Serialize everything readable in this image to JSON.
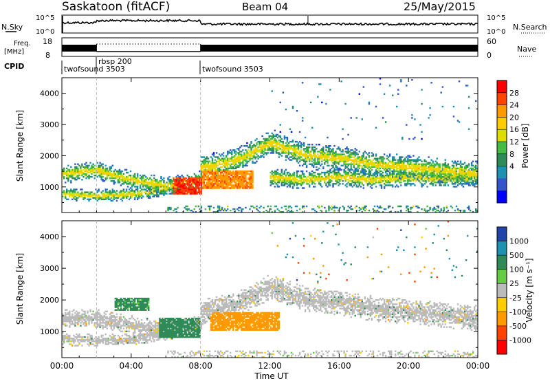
{
  "header": {
    "title": "Saskatoon (fitACF)",
    "beam": "Beam 04",
    "date": "25/May/2015"
  },
  "status_panels": {
    "nsky_label": "N.Sky",
    "nsearch_label": "N.Search",
    "noise_ticks": [
      "10^5",
      "10^0"
    ],
    "freq_label_line1": "Freq.",
    "freq_label_line2": "[MHz]",
    "freq_ticks": [
      "18",
      "8"
    ],
    "nave_label": "Nave",
    "nave_ticks": [
      "60",
      "0"
    ],
    "cpid_label": "CPID",
    "cpid_modes": [
      {
        "name": "twofsound 3503",
        "start_hr": 0,
        "end_hr": 2
      },
      {
        "name": "rbsp 200",
        "start_hr": 2,
        "end_hr": 8
      },
      {
        "name": "twofsound 3503",
        "start_hr": 8,
        "end_hr": 24
      }
    ]
  },
  "chart_data": [
    {
      "type": "heatmap",
      "panel": "power",
      "ylabel": "Slant Range [km]",
      "ylim": [
        180,
        4500
      ],
      "yticks": [
        1000,
        2000,
        3000,
        4000
      ],
      "xlim_hours": [
        0,
        24
      ],
      "colorbar_label": "Power [dB]",
      "colorbar_ticks": [
        "28",
        "24",
        "20",
        "16",
        "12",
        "8",
        "4"
      ],
      "colorbar_colors": [
        "#ff0000",
        "#ff4400",
        "#ff9900",
        "#ffcc00",
        "#dddd00",
        "#44bb44",
        "#2e8b57",
        "#1e90b0",
        "#3355cc",
        "#0000ff"
      ],
      "bands": [
        {
          "x": [
            0,
            2,
            4,
            6,
            8
          ],
          "y": [
            1400,
            1500,
            1200,
            1000,
            1200
          ],
          "width": 300
        },
        {
          "x": [
            0,
            2,
            4,
            6
          ],
          "y": [
            750,
            700,
            750,
            900
          ],
          "width": 200
        },
        {
          "x": [
            8,
            10,
            12,
            14,
            16,
            18,
            20,
            22,
            24
          ],
          "y": [
            1600,
            1800,
            2400,
            2000,
            1900,
            1700,
            1600,
            1500,
            1400
          ],
          "width": 400
        },
        {
          "x": [
            12,
            14,
            16,
            18,
            20,
            22,
            24
          ],
          "y": [
            1300,
            1200,
            1300,
            1200,
            1300,
            1250,
            1300
          ],
          "width": 300
        }
      ],
      "hotspots": [
        {
          "x": 7.2,
          "y": 1000,
          "dx": 0.8,
          "dy": 280,
          "value": 30
        },
        {
          "x": 9.5,
          "y": 1200,
          "dx": 1.5,
          "dy": 300,
          "value": 26
        }
      ]
    },
    {
      "type": "heatmap",
      "panel": "velocity",
      "ylabel": "Slant Range [km]",
      "ylim": [
        180,
        4500
      ],
      "yticks": [
        1000,
        2000,
        3000,
        4000
      ],
      "xlim_hours": [
        0,
        24
      ],
      "xticks": [
        "00:00",
        "04:00",
        "08:00",
        "12:00",
        "16:00",
        "20:00",
        "00:00"
      ],
      "xlabel": "Time UT",
      "colorbar_label": "Velocity [m s⁻¹]",
      "colorbar_ticks": [
        "1000",
        "500",
        "100",
        "25",
        "-25",
        "-100",
        "-500",
        "-1000"
      ],
      "colorbar_colors": [
        "#2244aa",
        "#1e90b0",
        "#2e8b57",
        "#66cc44",
        "#bbbbbb",
        "#ffcc00",
        "#ff9900",
        "#ff4400",
        "#ff0000"
      ],
      "bands": [
        {
          "x": [
            0,
            2,
            4,
            6,
            8
          ],
          "y": [
            1400,
            1400,
            1200,
            1000,
            1200
          ],
          "width": 300
        },
        {
          "x": [
            0,
            2,
            4,
            6
          ],
          "y": [
            750,
            700,
            750,
            900
          ],
          "width": 200
        },
        {
          "x": [
            8,
            10,
            12,
            14,
            16,
            18,
            20,
            22,
            24
          ],
          "y": [
            1600,
            1800,
            2400,
            2000,
            1900,
            1700,
            1600,
            1500,
            1400
          ],
          "width": 400
        }
      ],
      "hotspots": [
        {
          "x": 10.5,
          "y": 1300,
          "dx": 2.0,
          "dy": 280,
          "value": -300
        },
        {
          "x": 6.8,
          "y": 1100,
          "dx": 1.2,
          "dy": 300,
          "value": 150
        },
        {
          "x": 4.0,
          "y": 1850,
          "dx": 1.0,
          "dy": 200,
          "value": 120
        }
      ]
    }
  ]
}
